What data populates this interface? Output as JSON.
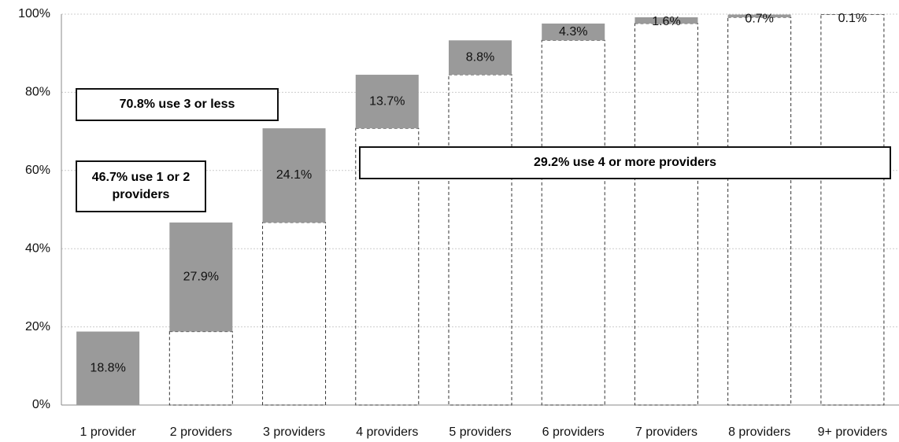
{
  "chart_data": {
    "type": "waterfall",
    "categories": [
      "1 provider",
      "2 providers",
      "3 providers",
      "4 providers",
      "5 providers",
      "6 providers",
      "7 providers",
      "8 providers",
      "9+ providers"
    ],
    "values": [
      18.8,
      27.9,
      24.1,
      13.7,
      8.8,
      4.3,
      1.6,
      0.7,
      0.1
    ],
    "value_labels": [
      "18.8%",
      "27.9%",
      "24.1%",
      "13.7%",
      "8.8%",
      "4.3%",
      "1.6%",
      "0.7%",
      "0.1%"
    ],
    "color": "#9a9a9a",
    "ylim": [
      0,
      100
    ],
    "yticks": [
      {
        "value": 0,
        "label": "0%"
      },
      {
        "value": 20,
        "label": "20%"
      },
      {
        "value": 40,
        "label": "40%"
      },
      {
        "value": 60,
        "label": "60%"
      },
      {
        "value": 80,
        "label": "80%"
      },
      {
        "value": 100,
        "label": "100%"
      }
    ],
    "grid": true,
    "annotations": [
      "70.8% use 3 or less",
      "46.7% use 1 or 2 providers",
      "29.2% use 4 or more providers"
    ]
  }
}
